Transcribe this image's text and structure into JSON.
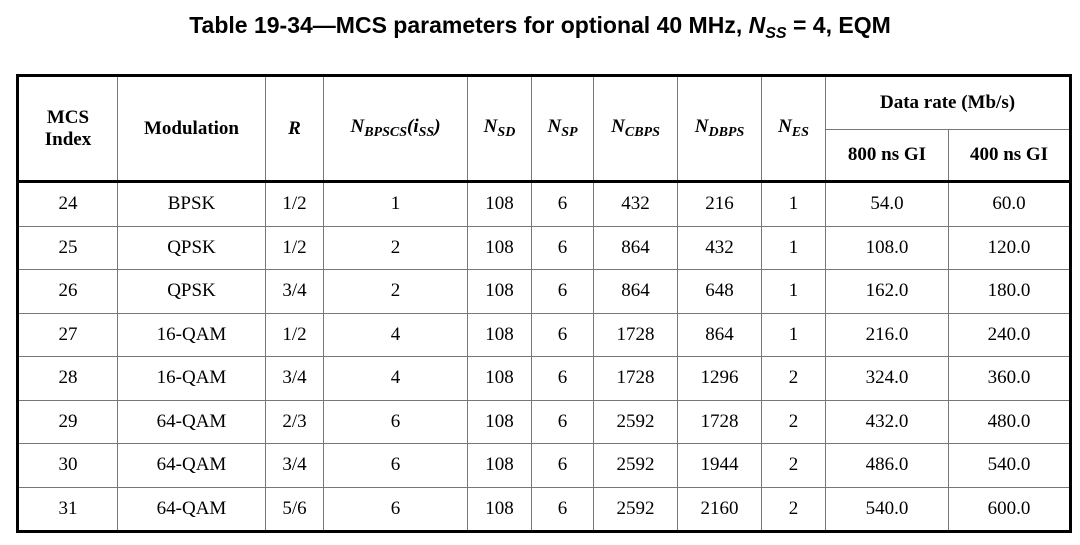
{
  "title": {
    "prefix": "Table 19-34—MCS parameters for optional 40 MHz, ",
    "n": "N",
    "sub": "SS",
    "suffix": " = 4, EQM"
  },
  "headers": {
    "mcs_index_line1": "MCS",
    "mcs_index_line2": "Index",
    "modulation": "Modulation",
    "r": "R",
    "nbpscs_n": "N",
    "nbpscs_sub": "BPSCS",
    "nbpscs_paren_open": "(i",
    "nbpscs_paren_sub": "SS",
    "nbpscs_paren_close": ")",
    "nsd_n": "N",
    "nsd_sub": "SD",
    "nsp_n": "N",
    "nsp_sub": "SP",
    "ncbps_n": "N",
    "ncbps_sub": "CBPS",
    "ndbps_n": "N",
    "ndbps_sub": "DBPS",
    "nes_n": "N",
    "nes_sub": "ES",
    "data_rate": "Data rate (Mb/s)",
    "gi800": "800 ns GI",
    "gi400": "400 ns GI"
  },
  "rows": [
    {
      "mcs": "24",
      "mod": "BPSK",
      "r": "1/2",
      "nbpscs": "1",
      "nsd": "108",
      "nsp": "6",
      "ncbps": "432",
      "ndbps": "216",
      "nes": "1",
      "rate800": "54.0",
      "rate400": "60.0"
    },
    {
      "mcs": "25",
      "mod": "QPSK",
      "r": "1/2",
      "nbpscs": "2",
      "nsd": "108",
      "nsp": "6",
      "ncbps": "864",
      "ndbps": "432",
      "nes": "1",
      "rate800": "108.0",
      "rate400": "120.0"
    },
    {
      "mcs": "26",
      "mod": "QPSK",
      "r": "3/4",
      "nbpscs": "2",
      "nsd": "108",
      "nsp": "6",
      "ncbps": "864",
      "ndbps": "648",
      "nes": "1",
      "rate800": "162.0",
      "rate400": "180.0"
    },
    {
      "mcs": "27",
      "mod": "16-QAM",
      "r": "1/2",
      "nbpscs": "4",
      "nsd": "108",
      "nsp": "6",
      "ncbps": "1728",
      "ndbps": "864",
      "nes": "1",
      "rate800": "216.0",
      "rate400": "240.0"
    },
    {
      "mcs": "28",
      "mod": "16-QAM",
      "r": "3/4",
      "nbpscs": "4",
      "nsd": "108",
      "nsp": "6",
      "ncbps": "1728",
      "ndbps": "1296",
      "nes": "2",
      "rate800": "324.0",
      "rate400": "360.0"
    },
    {
      "mcs": "29",
      "mod": "64-QAM",
      "r": "2/3",
      "nbpscs": "6",
      "nsd": "108",
      "nsp": "6",
      "ncbps": "2592",
      "ndbps": "1728",
      "nes": "2",
      "rate800": "432.0",
      "rate400": "480.0"
    },
    {
      "mcs": "30",
      "mod": "64-QAM",
      "r": "3/4",
      "nbpscs": "6",
      "nsd": "108",
      "nsp": "6",
      "ncbps": "2592",
      "ndbps": "1944",
      "nes": "2",
      "rate800": "486.0",
      "rate400": "540.0"
    },
    {
      "mcs": "31",
      "mod": "64-QAM",
      "r": "5/6",
      "nbpscs": "6",
      "nsd": "108",
      "nsp": "6",
      "ncbps": "2592",
      "ndbps": "2160",
      "nes": "2",
      "rate800": "540.0",
      "rate400": "600.0"
    }
  ]
}
